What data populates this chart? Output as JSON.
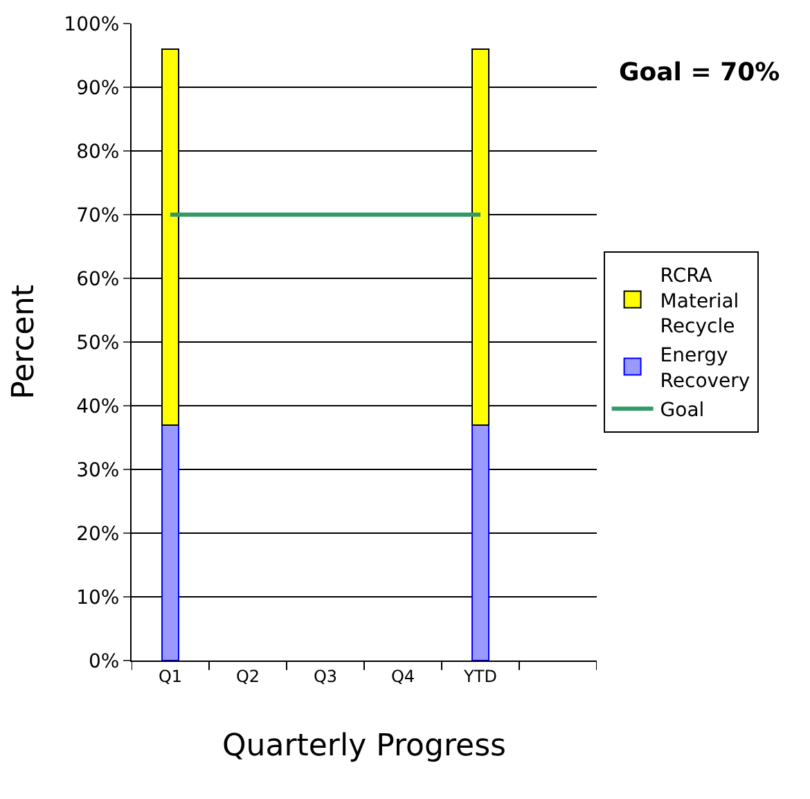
{
  "chart_data": {
    "type": "bar",
    "stacked": true,
    "xlabel": "Quarterly Progress",
    "ylabel": "Percent",
    "categories": [
      "Q1",
      "Q2",
      "Q3",
      "Q4",
      "YTD",
      null
    ],
    "series": [
      {
        "name": "Energy Recovery",
        "color": "#9999ff",
        "values": [
          37,
          null,
          null,
          null,
          37,
          null
        ]
      },
      {
        "name": "RCRA Material Recycle",
        "color": "#ffff00",
        "values": [
          59,
          null,
          null,
          null,
          59,
          null
        ]
      },
      {
        "name": "Goal",
        "type": "line",
        "color": "#339966",
        "values": [
          70,
          70,
          70,
          70,
          70,
          null
        ]
      }
    ],
    "ylim": [
      0,
      100
    ],
    "yticks": [
      {
        "value": 0,
        "label": "0%"
      },
      {
        "value": 10,
        "label": "10%"
      },
      {
        "value": 20,
        "label": "20%"
      },
      {
        "value": 30,
        "label": "30%"
      },
      {
        "value": 40,
        "label": "40%"
      },
      {
        "value": 50,
        "label": "50%"
      },
      {
        "value": 60,
        "label": "60%"
      },
      {
        "value": 70,
        "label": "70%"
      },
      {
        "value": 80,
        "label": "80%"
      },
      {
        "value": 90,
        "label": "90%"
      },
      {
        "value": 100,
        "label": "100%"
      }
    ],
    "grid": "y",
    "legend": "right",
    "annotations": [
      "Goal = 70%"
    ]
  }
}
